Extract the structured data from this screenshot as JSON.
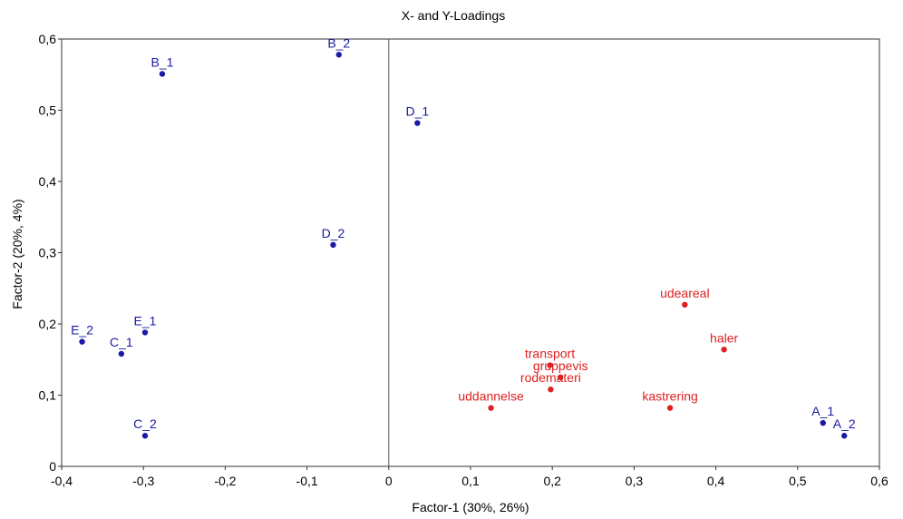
{
  "chart_data": {
    "type": "scatter",
    "title": "X- and Y-Loadings",
    "xlabel": "Factor-1 (30%, 26%)",
    "ylabel": "Factor-2 (20%, 4%)",
    "xlim": [
      -0.4,
      0.6
    ],
    "ylim": [
      0,
      0.6
    ],
    "x_ticks": [
      "-0,4",
      "-0,3",
      "-0,2",
      "-0,1",
      "0",
      "0,1",
      "0,2",
      "0,3",
      "0,4",
      "0,5",
      "0,6"
    ],
    "y_ticks": [
      "0",
      "0,1",
      "0,2",
      "0,3",
      "0,4",
      "0,5",
      "0,6"
    ],
    "zero_line_x": 0,
    "series": [
      {
        "color": "#1a1aa6",
        "points": [
          {
            "label": "B_1",
            "x": -0.277,
            "y": 0.551
          },
          {
            "label": "B_2",
            "x": -0.061,
            "y": 0.578
          },
          {
            "label": "D_1",
            "x": 0.035,
            "y": 0.482
          },
          {
            "label": "D_2",
            "x": -0.068,
            "y": 0.311
          },
          {
            "label": "E_1",
            "x": -0.298,
            "y": 0.188
          },
          {
            "label": "E_2",
            "x": -0.375,
            "y": 0.175
          },
          {
            "label": "C_1",
            "x": -0.327,
            "y": 0.158
          },
          {
            "label": "C_2",
            "x": -0.298,
            "y": 0.043
          },
          {
            "label": "A_1",
            "x": 0.531,
            "y": 0.061
          },
          {
            "label": "A_2",
            "x": 0.557,
            "y": 0.043
          }
        ]
      },
      {
        "color": "#e02020",
        "points": [
          {
            "label": "udeareal",
            "x": 0.362,
            "y": 0.227
          },
          {
            "label": "haler",
            "x": 0.41,
            "y": 0.164
          },
          {
            "label": "transport",
            "x": 0.197,
            "y": 0.142
          },
          {
            "label": "gruppevis",
            "x": 0.21,
            "y": 0.125
          },
          {
            "label": "rodemateri",
            "x": 0.198,
            "y": 0.108
          },
          {
            "label": "uddannelse",
            "x": 0.125,
            "y": 0.082
          },
          {
            "label": "kastrering",
            "x": 0.344,
            "y": 0.082
          }
        ]
      }
    ]
  }
}
